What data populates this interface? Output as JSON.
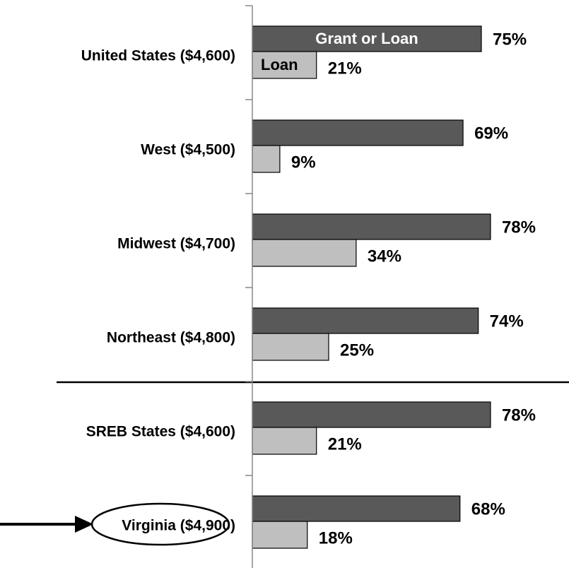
{
  "chart_data": {
    "type": "bar",
    "categories": [
      "United States ($4,600)",
      "West ($4,500)",
      "Midwest ($4,700)",
      "Northeast ($4,800)",
      "SREB States ($4,600)",
      "Virginia ($4,900)"
    ],
    "series": [
      {
        "name": "Grant or Loan",
        "color": "#595959",
        "values": [
          75,
          69,
          78,
          74,
          78,
          68
        ],
        "value_labels": [
          "75%",
          "69%",
          "78%",
          "74%",
          "78%",
          "68%"
        ]
      },
      {
        "name": "Loan",
        "color": "#bfbfbf",
        "values": [
          21,
          9,
          34,
          25,
          21,
          18
        ],
        "value_labels": [
          "21%",
          "9%",
          "34%",
          "25%",
          "21%",
          "18%"
        ]
      }
    ]
  }
}
